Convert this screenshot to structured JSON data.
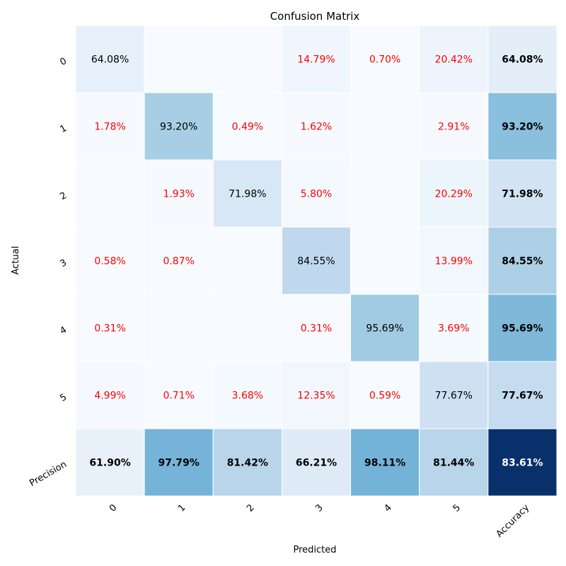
{
  "chart_data": {
    "type": "heatmap",
    "title": "Confusion Matrix",
    "xlabel": "Predicted",
    "ylabel": "Actual",
    "x_tick_labels": [
      "0",
      "1",
      "2",
      "3",
      "4",
      "5",
      "Accuracy"
    ],
    "y_tick_labels": [
      "0",
      "1",
      "2",
      "3",
      "4",
      "5",
      "Precision"
    ],
    "colormap": "Blues",
    "grid": true,
    "off_diagonal_text_color": "#ff0000",
    "diagonal_text_color": "#000000",
    "summary_text_weight": "bold",
    "rows": [
      [
        "64.08%",
        "",
        "",
        "14.79%",
        "0.70%",
        "20.42%",
        "64.08%"
      ],
      [
        "1.78%",
        "93.20%",
        "0.49%",
        "1.62%",
        "",
        "2.91%",
        "93.20%"
      ],
      [
        "",
        "1.93%",
        "71.98%",
        "5.80%",
        "",
        "20.29%",
        "71.98%"
      ],
      [
        "0.58%",
        "0.87%",
        "",
        "84.55%",
        "",
        "13.99%",
        "84.55%"
      ],
      [
        "0.31%",
        "",
        "",
        "0.31%",
        "95.69%",
        "3.69%",
        "95.69%"
      ],
      [
        "4.99%",
        "0.71%",
        "3.68%",
        "12.35%",
        "0.59%",
        "77.67%",
        "77.67%"
      ],
      [
        "61.90%",
        "97.79%",
        "81.42%",
        "66.21%",
        "98.11%",
        "81.44%",
        "83.61%"
      ]
    ]
  }
}
